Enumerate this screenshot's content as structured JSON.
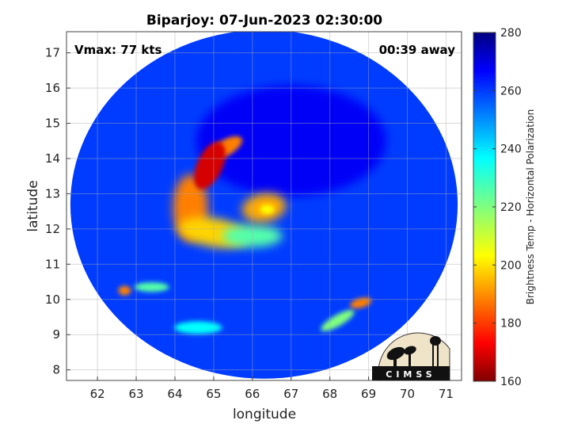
{
  "chart_data": {
    "type": "heatmap",
    "title": "Biparjoy: 07-Jun-2023 02:30:00",
    "xlabel": "longitude",
    "ylabel": "latitude",
    "xlim": [
      61.2,
      71.4
    ],
    "ylim": [
      7.7,
      17.6
    ],
    "xticks": [
      62,
      63,
      64,
      65,
      66,
      67,
      68,
      69,
      70,
      71
    ],
    "yticks": [
      8,
      9,
      10,
      11,
      12,
      13,
      14,
      15,
      16,
      17
    ],
    "grid": true,
    "annotations": {
      "vmax": "Vmax: 77 kts",
      "away": "00:39 away"
    },
    "colorbar": {
      "label": "Brightness Temp - Horizontal Polarization",
      "range": [
        160,
        280
      ],
      "ticks": [
        160,
        180,
        200,
        220,
        240,
        260,
        280
      ],
      "colormap": "jet"
    },
    "swath": {
      "center_lon": 66.3,
      "center_lat": 12.7,
      "radius_lon": 5.0,
      "radius_lat": 4.95,
      "background_value": 258
    },
    "features": [
      {
        "name": "eyewall-arc",
        "lon": 64.9,
        "lat": 13.8,
        "value": 170
      },
      {
        "name": "north-band",
        "lon": 65.3,
        "lat": 14.3,
        "value": 190
      },
      {
        "name": "west-rainband",
        "lon": 64.4,
        "lat": 12.6,
        "value": 190
      },
      {
        "name": "southwest-rainband",
        "lon": 65.0,
        "lat": 11.9,
        "value": 200
      },
      {
        "name": "inner-core",
        "lon": 66.3,
        "lat": 12.6,
        "value": 195
      },
      {
        "name": "south-core",
        "lon": 66.0,
        "lat": 11.8,
        "value": 225
      },
      {
        "name": "sw-cell",
        "lon": 62.7,
        "lat": 10.25,
        "value": 190
      },
      {
        "name": "sw-band",
        "lon": 63.4,
        "lat": 10.35,
        "value": 225
      },
      {
        "name": "se-cell",
        "lon": 68.8,
        "lat": 9.9,
        "value": 190
      },
      {
        "name": "se-band",
        "lon": 68.2,
        "lat": 9.4,
        "value": 220
      },
      {
        "name": "s-band",
        "lon": 64.6,
        "lat": 9.2,
        "value": 235
      },
      {
        "name": "cold-sector",
        "lon": 67.0,
        "lat": 14.5,
        "value": 266
      }
    ],
    "logo": "CIMSS"
  }
}
